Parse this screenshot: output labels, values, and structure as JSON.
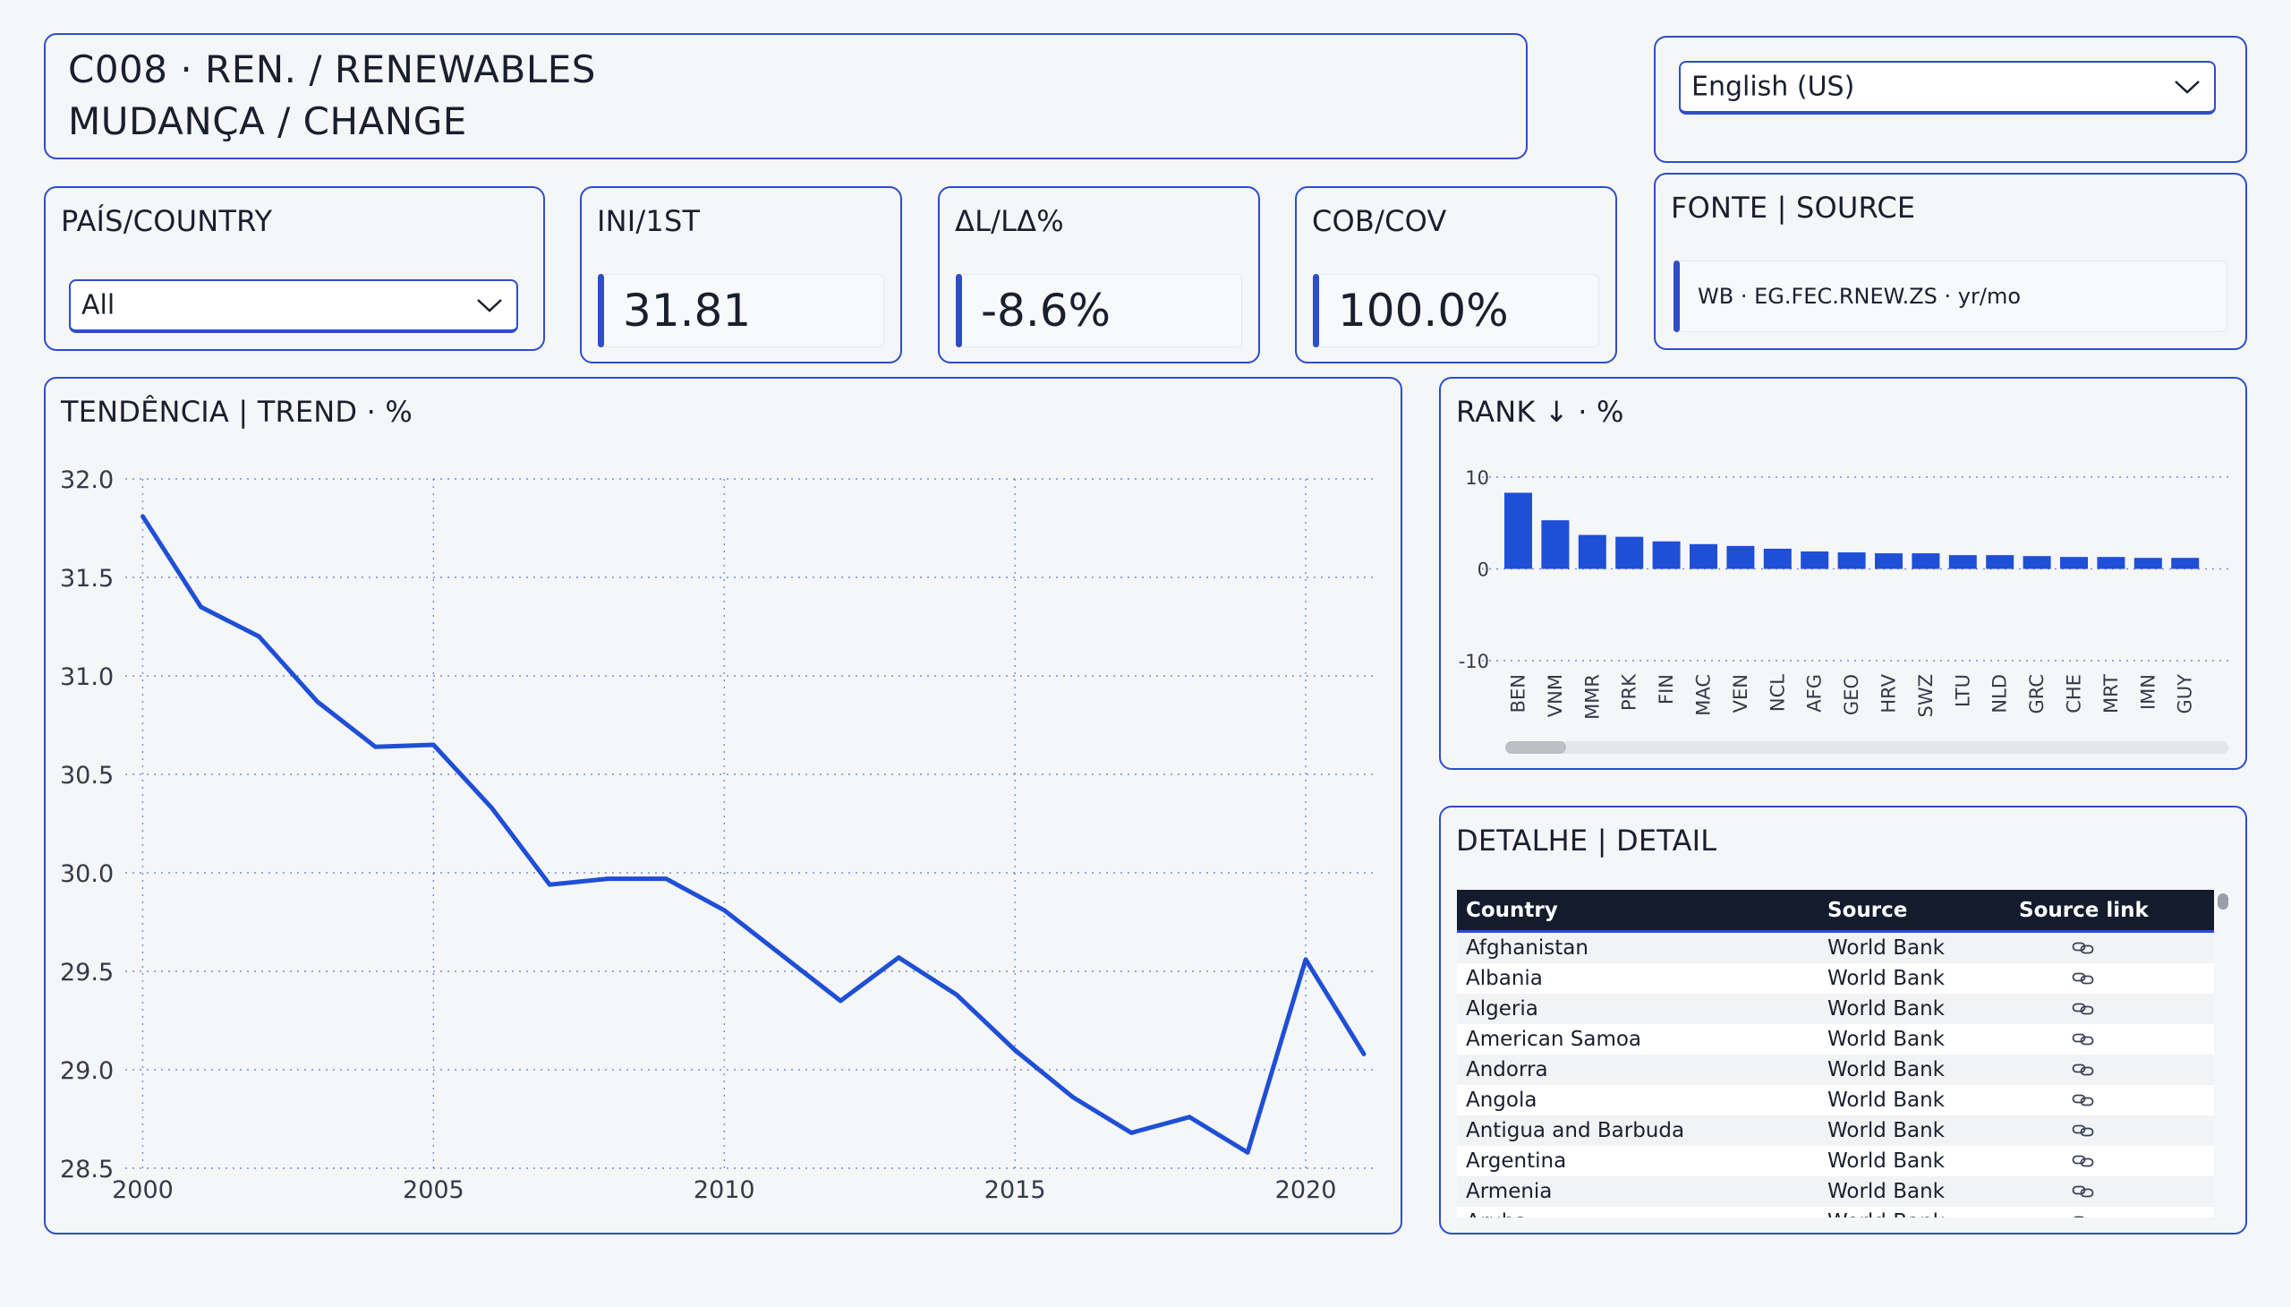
{
  "header": {
    "title_line1": "C008 · REN. / RENEWABLES",
    "title_line2": "MUDANÇA / CHANGE"
  },
  "language": {
    "selected": "English (US)"
  },
  "country_filter": {
    "label": "PAÍS/COUNTRY",
    "selected": "All"
  },
  "kpis": [
    {
      "label": "INI/1ST",
      "value": "31.81"
    },
    {
      "label": "ΔL/LΔ%",
      "value": "-8.6%"
    },
    {
      "label": "COB/COV",
      "value": "100.0%"
    }
  ],
  "source": {
    "label": "FONTE | SOURCE",
    "text": "WB · EG.FEC.RNEW.ZS · yr/mo"
  },
  "trend": {
    "title": "TENDÊNCIA | TREND · %"
  },
  "rank": {
    "title": "RANK ↓ · %"
  },
  "detail": {
    "title": "DETALHE | DETAIL",
    "columns": [
      "Country",
      "Source",
      "Source link"
    ],
    "rows": [
      {
        "country": "Afghanistan",
        "source": "World Bank"
      },
      {
        "country": "Albania",
        "source": "World Bank"
      },
      {
        "country": "Algeria",
        "source": "World Bank"
      },
      {
        "country": "American Samoa",
        "source": "World Bank"
      },
      {
        "country": "Andorra",
        "source": "World Bank"
      },
      {
        "country": "Angola",
        "source": "World Bank"
      },
      {
        "country": "Antigua and Barbuda",
        "source": "World Bank"
      },
      {
        "country": "Argentina",
        "source": "World Bank"
      },
      {
        "country": "Armenia",
        "source": "World Bank"
      },
      {
        "country": "Aruba",
        "source": "World Bank"
      }
    ]
  },
  "colors": {
    "accent": "#2d4ec8",
    "line": "#1f4fd6",
    "bar": "#1f4fd6",
    "header_bg": "#141b2d"
  },
  "icons": {
    "dropdown": "chevron-down-icon",
    "link": "link-icon"
  },
  "chart_data": [
    {
      "type": "line",
      "title": "TENDÊNCIA | TREND · %",
      "x": [
        2000,
        2001,
        2002,
        2003,
        2004,
        2005,
        2006,
        2007,
        2008,
        2009,
        2010,
        2011,
        2012,
        2013,
        2014,
        2015,
        2016,
        2017,
        2018,
        2019,
        2020,
        2021
      ],
      "series": [
        {
          "values": [
            31.81,
            31.35,
            31.2,
            30.87,
            30.64,
            30.65,
            30.33,
            29.94,
            29.97,
            29.97,
            29.81,
            29.58,
            29.35,
            29.57,
            29.38,
            29.1,
            28.86,
            28.68,
            28.76,
            28.58,
            29.56,
            29.08
          ]
        }
      ],
      "xticks": [
        2000,
        2005,
        2010,
        2015,
        2020
      ],
      "yticks": [
        "32.0",
        "31.5",
        "31.0",
        "30.5",
        "30.0",
        "29.5",
        "29.0",
        "28.5"
      ],
      "xlim": [
        1999.7,
        2021.2
      ],
      "ylim": [
        28.5,
        32.0
      ],
      "grid": true
    },
    {
      "type": "bar",
      "title": "RANK ↓ · %",
      "categories": [
        "BEN",
        "VNM",
        "MMR",
        "PRK",
        "FIN",
        "MAC",
        "VEN",
        "NCL",
        "AFG",
        "GEO",
        "HRV",
        "SWZ",
        "LTU",
        "NLD",
        "GRC",
        "CHE",
        "MRT",
        "IMN",
        "GUY"
      ],
      "values": [
        8.3,
        5.3,
        3.7,
        3.5,
        3.0,
        2.7,
        2.5,
        2.2,
        1.9,
        1.8,
        1.7,
        1.7,
        1.5,
        1.5,
        1.4,
        1.3,
        1.3,
        1.2,
        1.2
      ],
      "yticks": [
        "10",
        "0",
        "-10"
      ],
      "ylim": [
        -10,
        10
      ],
      "grid": true
    }
  ]
}
